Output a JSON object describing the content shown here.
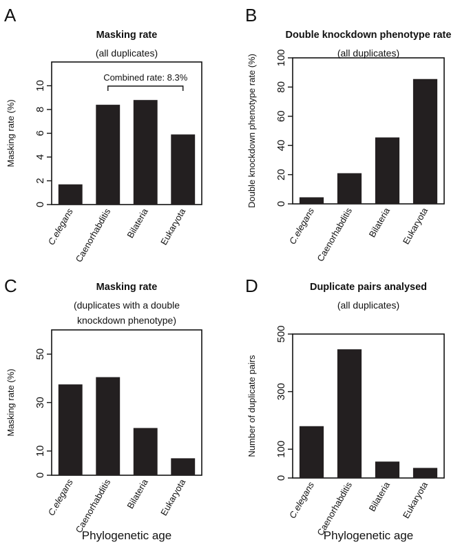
{
  "chart_data": [
    {
      "panel": "A",
      "type": "bar",
      "title": "Masking rate",
      "subtitle_lines": [
        "(all duplicates)"
      ],
      "ylabel": "Masking rate (%)",
      "xlabel": "",
      "categories": [
        "C.elegans",
        "Caenorhabditis",
        "Bilateria",
        "Eukaryota"
      ],
      "values": [
        1.7,
        8.4,
        8.8,
        5.9
      ],
      "ylim": [
        0,
        12
      ],
      "yticks": [
        0,
        2,
        4,
        6,
        8,
        10
      ],
      "annotation": "Combined rate: 8.3%",
      "bracket_categories": [
        1,
        3
      ],
      "grid": false,
      "bar_color": "#231f20"
    },
    {
      "panel": "B",
      "type": "bar",
      "title": "Double knockdown phenotype rate",
      "subtitle_lines": [
        "(all duplicates)"
      ],
      "ylabel": "Double knockdown phenotype rate (%)",
      "xlabel": "",
      "categories": [
        "C.elegans",
        "Caenorhabditis",
        "Bilateria",
        "Eukaryota"
      ],
      "values": [
        4.5,
        21,
        45.5,
        85.5
      ],
      "ylim": [
        0,
        100
      ],
      "yticks": [
        0,
        20,
        40,
        60,
        80,
        100
      ],
      "grid": false,
      "bar_color": "#231f20"
    },
    {
      "panel": "C",
      "type": "bar",
      "title": "Masking rate",
      "subtitle_lines": [
        "(duplicates with a double",
        "knockdown phenotype)"
      ],
      "ylabel": "Masking rate (%)",
      "xlabel": "Phylogenetic age",
      "categories": [
        "C.elegans",
        "Caenorhabditis",
        "Bilateria",
        "Eukaryota"
      ],
      "values": [
        37.5,
        40.5,
        19.5,
        7
      ],
      "ylim": [
        0,
        60
      ],
      "yticks": [
        0,
        10,
        30,
        50
      ],
      "grid": false,
      "bar_color": "#231f20"
    },
    {
      "panel": "D",
      "type": "bar",
      "title": "Duplicate pairs analysed",
      "subtitle_lines": [
        "(all duplicates)"
      ],
      "ylabel": "Number of duplicate pairs",
      "xlabel": "Phylogenetic age",
      "categories": [
        "C.elegans",
        "Caenorhabditis",
        "Bilateria",
        "Eukaryota"
      ],
      "values": [
        180,
        447,
        57,
        35
      ],
      "ylim": [
        0,
        500
      ],
      "yticks": [
        0,
        100,
        300,
        500
      ],
      "grid": false,
      "bar_color": "#231f20"
    }
  ]
}
